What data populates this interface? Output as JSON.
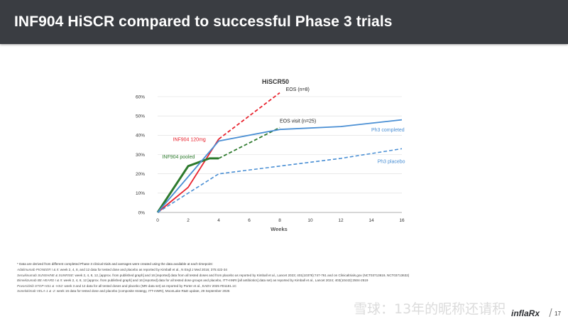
{
  "header": {
    "title": "INF904 HiSCR compared to successful Phase 3 trials"
  },
  "chart_data": {
    "type": "line",
    "title": "HiSCR50",
    "xlabel": "Weeks",
    "ylabel": "",
    "x_ticks": [
      0,
      2,
      4,
      6,
      8,
      10,
      12,
      14,
      16
    ],
    "y_ticks": [
      "0%",
      "10%",
      "20%",
      "30%",
      "40%",
      "50%",
      "60%"
    ],
    "xlim": [
      0,
      16
    ],
    "ylim": [
      0,
      60
    ],
    "series": [
      {
        "name": "INF904 120mg",
        "color": "#e8222d",
        "style": "solid",
        "width": 1.8,
        "x": [
          0,
          2,
          4
        ],
        "y": [
          0,
          13,
          38
        ]
      },
      {
        "name": "INF904 120mg EOS",
        "color": "#e8222d",
        "style": "dashed",
        "width": 1.8,
        "x": [
          4,
          8
        ],
        "y": [
          38,
          62
        ]
      },
      {
        "name": "INF904 pooled",
        "color": "#2d7a2d",
        "style": "solid",
        "width": 3,
        "x": [
          0,
          2,
          3.4,
          4
        ],
        "y": [
          0,
          24,
          28,
          28
        ]
      },
      {
        "name": "INF904 pooled EOS",
        "color": "#2d7a2d",
        "style": "dashed",
        "width": 1.8,
        "x": [
          4,
          8
        ],
        "y": [
          28,
          44
        ]
      },
      {
        "name": "Ph3 completed",
        "color": "#4a8fd4",
        "style": "solid",
        "width": 1.8,
        "x": [
          0,
          4,
          8,
          12,
          16
        ],
        "y": [
          0,
          37,
          43,
          44.5,
          48
        ]
      },
      {
        "name": "Ph3 placebo",
        "color": "#4a8fd4",
        "style": "dashed",
        "width": 1.6,
        "x": [
          0,
          4,
          8,
          12,
          16
        ],
        "y": [
          0,
          20,
          24,
          28,
          33
        ]
      }
    ],
    "annotations": [
      {
        "text": "EOS (n=8)",
        "color": "#222222",
        "x": 8.4,
        "y": 63
      },
      {
        "text": "EOS visit (n=25)",
        "color": "#222222",
        "x": 8,
        "y": 46.5
      },
      {
        "text": "INF904 120mg",
        "color": "#e8222d",
        "x": 1,
        "y": 37
      },
      {
        "text": "INF904 pooled",
        "color": "#2d7a2d",
        "x": 0.3,
        "y": 28
      },
      {
        "text": "Ph3 completed",
        "color": "#4a8fd4",
        "x": 14,
        "y": 42
      },
      {
        "text": "Ph3 placebo",
        "color": "#4a8fd4",
        "x": 14.4,
        "y": 25.5
      }
    ]
  },
  "footnotes": {
    "lead": "* Data are derived from different completed Phase 3 clinical trials and averages were created using the data available at each timepoint:",
    "refs": [
      {
        "drug": "Adalimumab PIONEER I & II",
        "text": ": week 2, 4, 8, and 12 data for tested dose and placebo as reported by Kimball et al., N Engl J Med 2016; 375:422-34"
      },
      {
        "drug": "Secukinumab SUNSHINE & SUNRISE",
        "text": ": week 2, 4, 8, 12, [approx. from published graph] and 16 [reported] data from all tested doses and from placebo as reported by Kimball et al., Lancet 2023; 401(10378):747-761 and on Clinicaltrials.gov (NCT03713619, NCT03713632)"
      },
      {
        "drug": "Bimekizumab BE HEARD I & II",
        "text": ": week 2, 4, 8, 12 [approx. from published graph] and 16 [reported] data for all tested dose groups and placebo, ITT-mNRI [all antibiotics] data set) as reported by Kimball et al., Lancet 2024; 403(10443):2504-2519"
      },
      {
        "drug": "Povorcitinib STOP-HS1 & -HS2",
        "text": ": week 3 and 12 data for all tested doses and placebo (NRI data set) as reported by Porter et al., EADV 2025 #D1181.1C"
      },
      {
        "drug": "Sonelokimab VELA-1 & -2",
        "text": ": week 16 data for tested dose and placebo (composite strategy, ITT-mNRI), MoonLake R&D update, 29 September 2025"
      }
    ]
  },
  "watermark": "雪球：13年的昵称还请积",
  "logo": {
    "brand": "inflaRx"
  },
  "page_number": "17"
}
